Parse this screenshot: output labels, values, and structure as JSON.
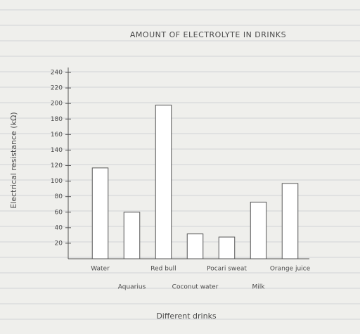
{
  "chart_data": {
    "type": "bar",
    "title": "AMOUNT OF ELECTROLYTE IN DRINKS",
    "y_label": "Electrical resistance (kΩ)",
    "x_label": "Different drinks",
    "categories": [
      "Water",
      "Aquarius",
      "Red bull",
      "Coconut water",
      "Pocari sweat",
      "Milk",
      "Orange juice"
    ],
    "values": [
      117,
      60,
      198,
      32,
      28,
      73,
      97
    ],
    "color": "#ffffff",
    "ylim": [
      0,
      250
    ],
    "yticks": [
      20,
      40,
      60,
      80,
      100,
      120,
      140,
      160,
      180,
      200,
      220,
      240
    ],
    "grid": false
  }
}
